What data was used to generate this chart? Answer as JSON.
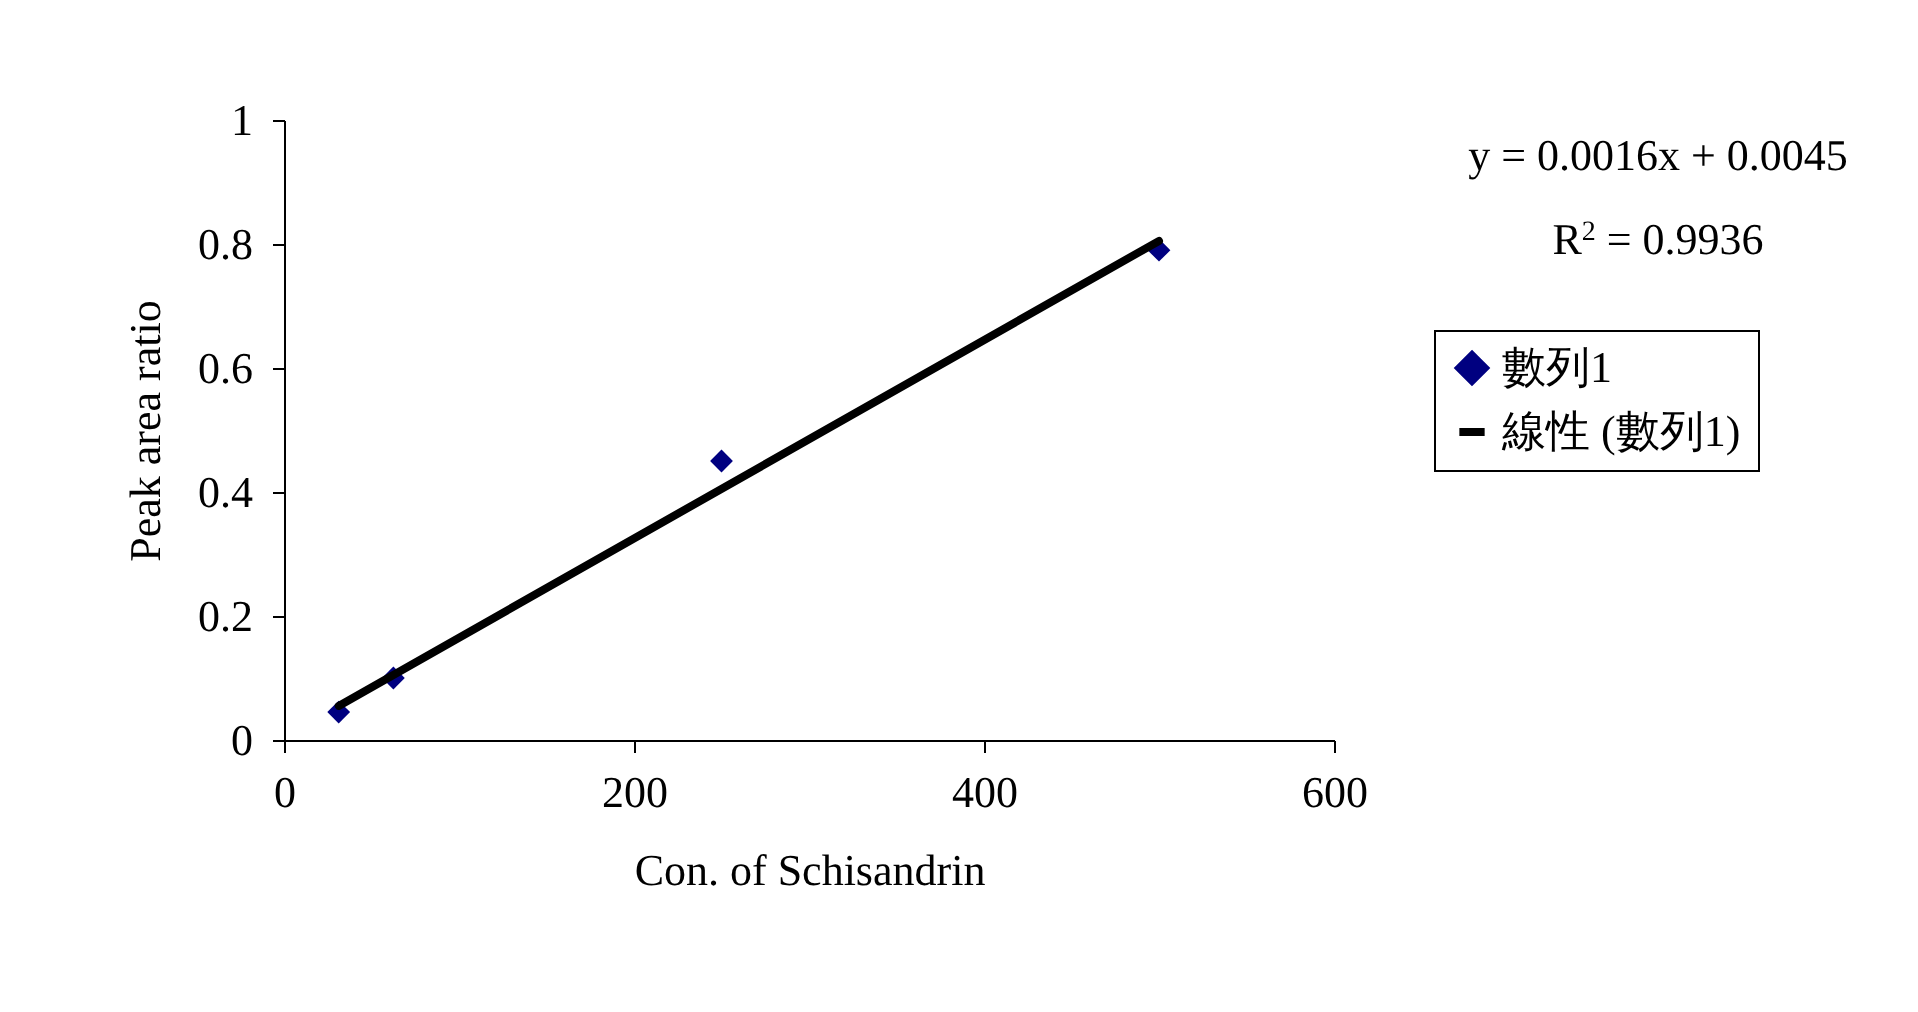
{
  "chart_data": {
    "type": "scatter",
    "xlabel": "Con. of Schisandrin",
    "ylabel": "Peak area ratio",
    "x": [
      31.25,
      62.5,
      250,
      500
    ],
    "series": [
      {
        "name": "數列1",
        "color": "#000080",
        "marker": "diamond",
        "values": [
          0.045,
          0.1,
          0.45,
          0.79
        ]
      },
      {
        "name": "線性 (數列1)",
        "type": "line",
        "color": "#000000",
        "line_style": "solid",
        "marker": "none",
        "x": [
          31.25,
          500
        ],
        "values": [
          0.055,
          0.805
        ]
      }
    ],
    "xlim": [
      0,
      600
    ],
    "xticks": [
      0,
      200,
      400,
      600
    ],
    "ylim": [
      0,
      1
    ],
    "yticks": [
      0,
      0.2,
      0.4,
      0.6,
      0.8,
      1
    ],
    "grid": false,
    "legend": "right",
    "annotations": [
      "y = 0.0016x + 0.0045",
      "R$^{2}$ = 0.9936"
    ]
  }
}
